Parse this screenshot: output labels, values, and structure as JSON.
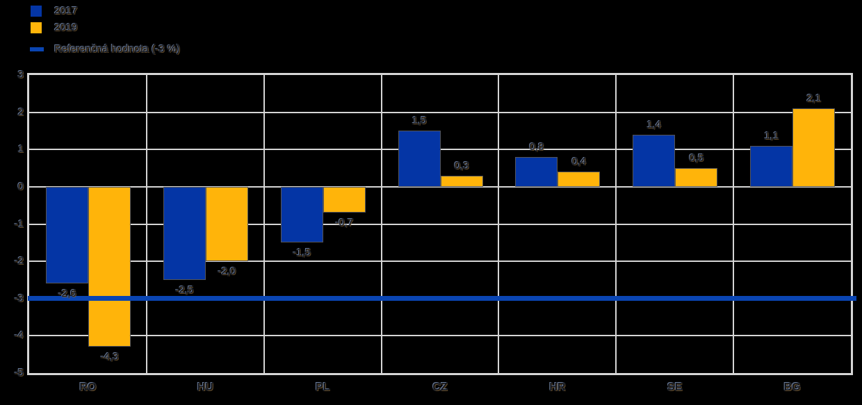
{
  "legend": {
    "items": [
      {
        "label": "2017",
        "type": "square",
        "color": "#0435a5"
      },
      {
        "label": "2019",
        "type": "square",
        "color": "#ffb40a"
      },
      {
        "label": "Referenčná hodnota (-3 %)",
        "type": "line",
        "color": "#0a45b2"
      }
    ]
  },
  "chart_data": {
    "type": "bar",
    "categories": [
      "RO",
      "HU",
      "PL",
      "CZ",
      "HR",
      "SE",
      "BG"
    ],
    "series": [
      {
        "name": "2017",
        "color": "#0435a5",
        "values": [
          -2.6,
          -2.5,
          -1.5,
          1.5,
          0.8,
          1.4,
          1.1
        ],
        "value_labels": [
          "-2,6",
          "-2,5",
          "-1,5",
          "1,5",
          "0,8",
          "1,4",
          "1,1"
        ]
      },
      {
        "name": "2019",
        "color": "#ffb40a",
        "values": [
          -4.3,
          -2.0,
          -0.7,
          0.3,
          0.4,
          0.5,
          2.1
        ],
        "value_labels": [
          "-4,3",
          "-2,0",
          "-0,7",
          "0,3",
          "0,4",
          "0,5",
          "2,1"
        ]
      }
    ],
    "reference_line": {
      "value": -3,
      "label": "Referenčná hodnota (-3 %)",
      "color": "#0a45b2"
    },
    "ylim": [
      -5,
      3
    ],
    "ytick_labels": [
      "3",
      "2",
      "1",
      "0",
      "-1",
      "-2",
      "-3",
      "-4",
      "-5"
    ],
    "grid": true,
    "legend_position": "top-left",
    "decimal_separator": ","
  },
  "colors": {
    "background": "#000000",
    "gridline": "#d6d6d6",
    "bar_2017": "#0435a5",
    "bar_2019": "#ffb40a",
    "reference_line": "#0a45b2"
  }
}
